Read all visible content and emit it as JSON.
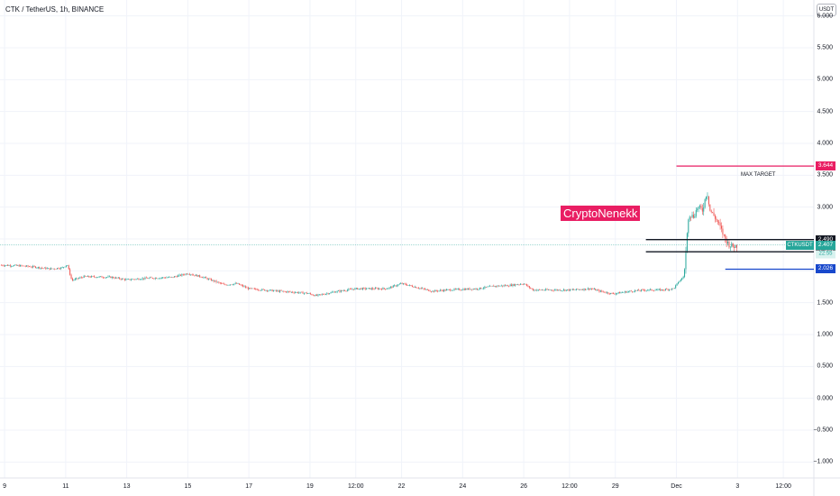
{
  "header": {
    "title": "CTK / TetherUS, 1h, BINANCE",
    "currency": "USDT"
  },
  "watermark": "CryptoNenekk",
  "annotation": "MAX TARGET",
  "colors": {
    "up": "#26a69a",
    "down": "#ef5350",
    "pink": "#e91e63",
    "blue": "#1848cc",
    "black": "#131722",
    "grid": "#f0f3fa"
  },
  "chart_data": {
    "type": "candlestick",
    "ylim": [
      -1.25,
      6.25
    ],
    "yticks": [
      "6.000",
      "5.500",
      "5.000",
      "4.500",
      "4.000",
      "3.500",
      "3.000",
      "2.500",
      "2.000",
      "1.500",
      "1.000",
      "0.500",
      "0.000",
      "−0.500",
      "−1.000"
    ],
    "xticks": [
      "9",
      "11",
      "13",
      "15",
      "17",
      "19",
      "12:00",
      "22",
      "24",
      "26",
      "12:00",
      "29",
      "Dec",
      "3",
      "12:00"
    ],
    "x_range": [
      8.85,
      35.5
    ],
    "xtick_positions": [
      9,
      11,
      13,
      15,
      17,
      19,
      20.5,
      22,
      24,
      26,
      27.5,
      29,
      31,
      33,
      34.5
    ],
    "price_path": [
      [
        8.85,
        2.09
      ],
      [
        9.5,
        2.08
      ],
      [
        10.0,
        2.06
      ],
      [
        10.5,
        2.03
      ],
      [
        10.9,
        2.05
      ],
      [
        11.05,
        2.1
      ],
      [
        11.2,
        1.85
      ],
      [
        11.6,
        1.91
      ],
      [
        12.5,
        1.9
      ],
      [
        13.0,
        1.86
      ],
      [
        13.5,
        1.88
      ],
      [
        14.5,
        1.9
      ],
      [
        15.0,
        1.96
      ],
      [
        15.5,
        1.9
      ],
      [
        16.2,
        1.78
      ],
      [
        16.6,
        1.8
      ],
      [
        17.0,
        1.72
      ],
      [
        18.0,
        1.68
      ],
      [
        18.9,
        1.65
      ],
      [
        19.2,
        1.61
      ],
      [
        19.8,
        1.67
      ],
      [
        20.5,
        1.72
      ],
      [
        21.5,
        1.72
      ],
      [
        22.0,
        1.8
      ],
      [
        22.5,
        1.74
      ],
      [
        23.0,
        1.68
      ],
      [
        23.5,
        1.7
      ],
      [
        24.5,
        1.72
      ],
      [
        25.0,
        1.76
      ],
      [
        25.5,
        1.77
      ],
      [
        26.0,
        1.8
      ],
      [
        26.3,
        1.7
      ],
      [
        26.8,
        1.7
      ],
      [
        27.5,
        1.7
      ],
      [
        28.2,
        1.72
      ],
      [
        28.5,
        1.68
      ],
      [
        28.9,
        1.64
      ],
      [
        29.5,
        1.68
      ],
      [
        30.0,
        1.7
      ],
      [
        30.5,
        1.7
      ],
      [
        30.9,
        1.72
      ],
      [
        31.1,
        1.84
      ],
      [
        31.25,
        1.92
      ],
      [
        31.4,
        2.9
      ],
      [
        31.55,
        2.85
      ],
      [
        31.7,
        3.0
      ],
      [
        31.85,
        2.95
      ],
      [
        32.0,
        3.25
      ],
      [
        32.1,
        2.95
      ],
      [
        32.25,
        2.85
      ],
      [
        32.4,
        2.72
      ],
      [
        32.55,
        2.55
      ],
      [
        32.7,
        2.42
      ],
      [
        32.85,
        2.38
      ],
      [
        33.0,
        2.4
      ]
    ],
    "current_price": 2.407,
    "symbol": "CTKUSDT",
    "countdown": "22:55",
    "horizontal_lines": [
      {
        "value": 3.644,
        "label": "3.644",
        "color": "#e91e63",
        "x_from": 31.0
      },
      {
        "value": 2.49,
        "label": "2.490",
        "color": "#131722",
        "x_from": 30.0
      },
      {
        "value": 2.299,
        "label": "2.299",
        "color": "#131722",
        "x_from": 30.0
      },
      {
        "value": 2.026,
        "label": "2.026",
        "color": "#1848cc",
        "x_from": 32.6
      }
    ]
  }
}
